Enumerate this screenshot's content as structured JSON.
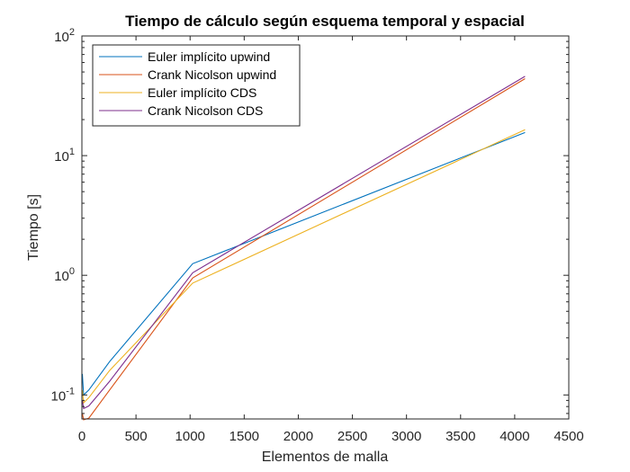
{
  "chart_data": {
    "type": "line",
    "title": "Tiempo de cálculo según esquema temporal y espacial",
    "xlabel": "Elementos de malla",
    "ylabel": "Tiempo [s]",
    "xlim": [
      0,
      4500
    ],
    "ylim": [
      0.063,
      100
    ],
    "yscale": "log",
    "grid": false,
    "legend_position": "top-left",
    "xticks": [
      0,
      500,
      1000,
      1500,
      2000,
      2500,
      3000,
      3500,
      4000,
      4500
    ],
    "xtick_labels": [
      "0",
      "500",
      "1000",
      "1500",
      "2000",
      "2500",
      "3000",
      "3500",
      "4000",
      "4500"
    ],
    "yticks": [
      {
        "value": 0.1,
        "base": "10",
        "exp": "-1"
      },
      {
        "value": 1,
        "base": "10",
        "exp": "0"
      },
      {
        "value": 10,
        "base": "10",
        "exp": "1"
      },
      {
        "value": 100,
        "base": "10",
        "exp": "2"
      }
    ],
    "series": [
      {
        "name": "Euler implícito upwind",
        "color": "#0072BD",
        "x": [
          4,
          16,
          64,
          256,
          1024,
          4096
        ],
        "y": [
          0.15,
          0.1,
          0.11,
          0.19,
          1.25,
          15.6
        ]
      },
      {
        "name": "Crank Nicolson upwind",
        "color": "#D95319",
        "x": [
          4,
          16,
          64,
          256,
          1024,
          4096
        ],
        "y": [
          0.07,
          0.062,
          0.064,
          0.11,
          0.95,
          44
        ]
      },
      {
        "name": "Euler implícito CDS",
        "color": "#EDB120",
        "x": [
          4,
          16,
          64,
          256,
          1024,
          4096
        ],
        "y": [
          0.11,
          0.086,
          0.095,
          0.16,
          0.86,
          16.5
        ]
      },
      {
        "name": "Crank Nicolson CDS",
        "color": "#7E2F8E",
        "x": [
          4,
          16,
          64,
          256,
          1024,
          4096
        ],
        "y": [
          0.09,
          0.077,
          0.081,
          0.13,
          1.05,
          46
        ]
      }
    ]
  }
}
